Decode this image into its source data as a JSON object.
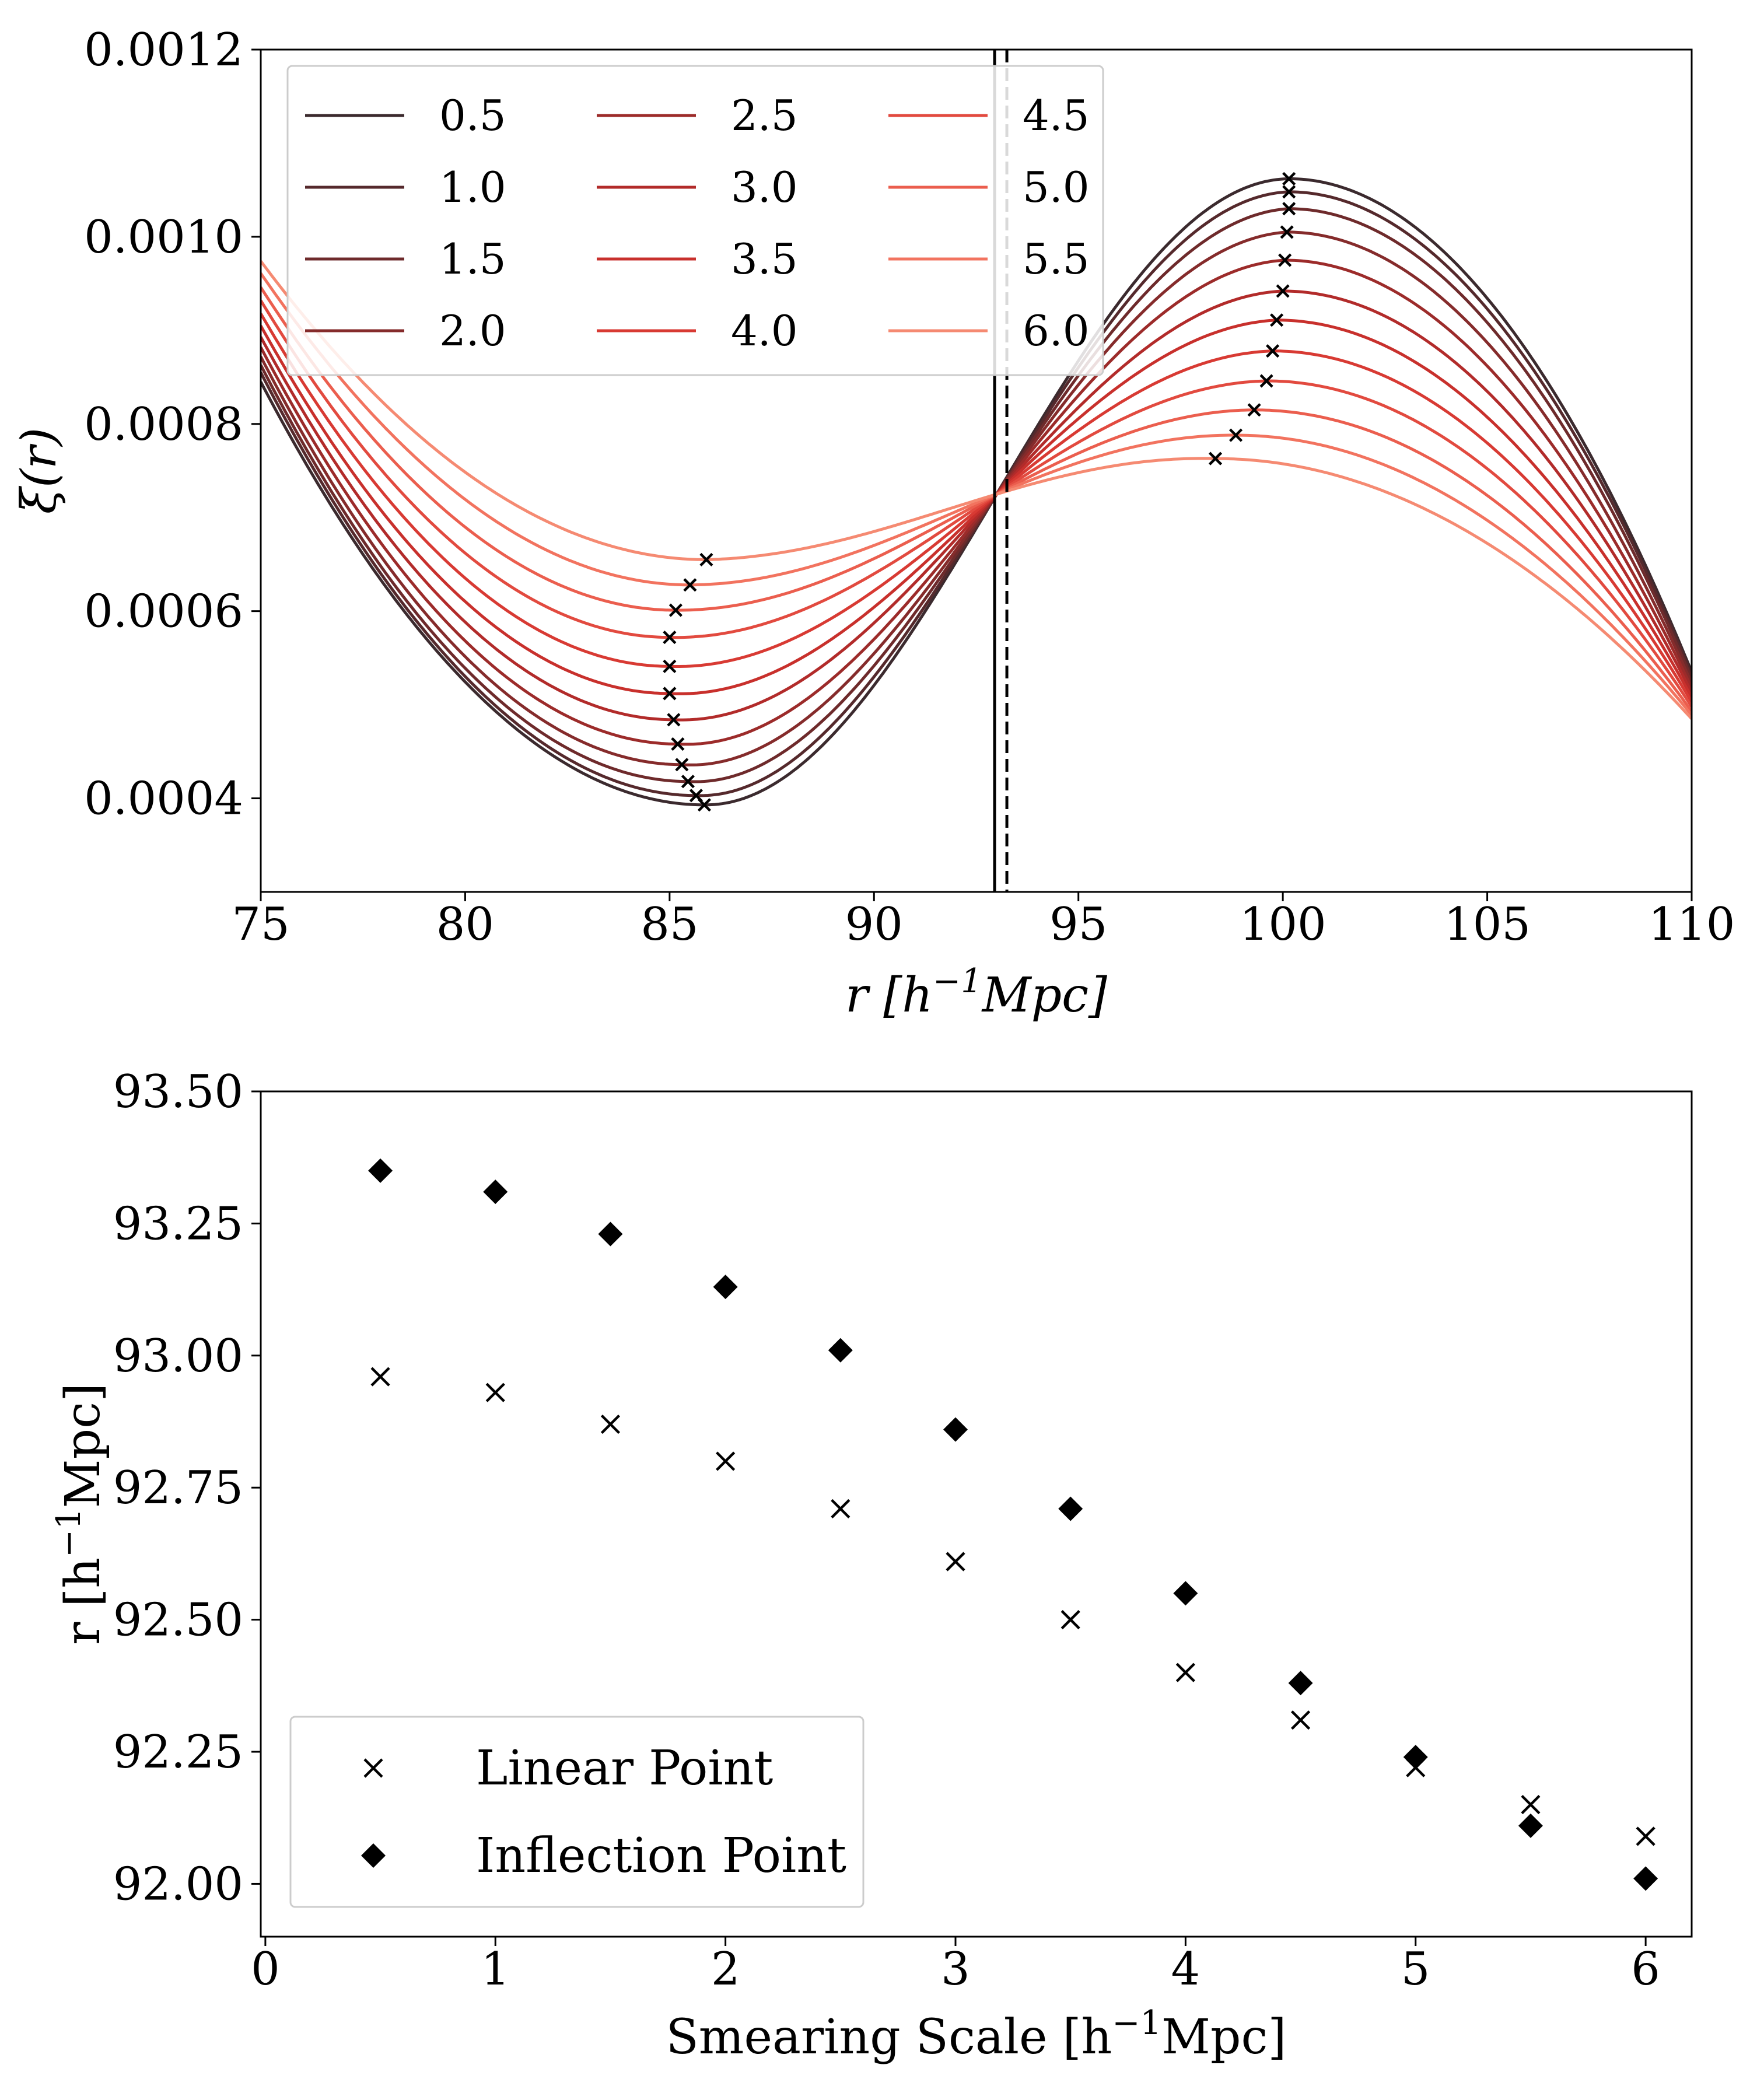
{
  "chart_data": [
    {
      "type": "line",
      "xlabel": "r [h⁻¹Mpc]",
      "ylabel": "ξ(r)",
      "xlim": [
        75,
        110
      ],
      "ylim": [
        0.0003,
        0.0012
      ],
      "xticks": [
        75,
        80,
        85,
        90,
        95,
        100,
        105,
        110
      ],
      "xtick_labels": [
        "75",
        "80",
        "85",
        "90",
        "95",
        "100",
        "105",
        "110"
      ],
      "yticks": [
        0.0004,
        0.0006,
        0.0008,
        0.001,
        0.0012
      ],
      "ytick_labels": [
        "0.0004",
        "0.0006",
        "0.0008",
        "0.0010",
        "0.0012"
      ],
      "legend": {
        "location": "upper-left",
        "columns": 3
      },
      "vlines": [
        {
          "x": 92.95,
          "style": "solid"
        },
        {
          "x": 93.25,
          "style": "dashed"
        }
      ],
      "crossing": {
        "x": 93.0,
        "y": 0.000725
      },
      "series": [
        {
          "name": "0.5",
          "color": "#3b2a2e",
          "left_edge": 0.000845,
          "min": {
            "x": 85.85,
            "y": 0.000393
          },
          "max": {
            "x": 100.15,
            "y": 0.001062
          },
          "right_edge": 0.000535
        },
        {
          "name": "1.0",
          "color": "#55292c",
          "left_edge": 0.000855,
          "min": {
            "x": 85.65,
            "y": 0.000403
          },
          "max": {
            "x": 100.15,
            "y": 0.001048
          },
          "right_edge": 0.000532
        },
        {
          "name": "1.5",
          "color": "#6e2a2b",
          "left_edge": 0.000863,
          "min": {
            "x": 85.45,
            "y": 0.000418
          },
          "max": {
            "x": 100.15,
            "y": 0.00103
          },
          "right_edge": 0.000528
        },
        {
          "name": "2.0",
          "color": "#852b2b",
          "left_edge": 0.000872,
          "min": {
            "x": 85.3,
            "y": 0.000436
          },
          "max": {
            "x": 100.1,
            "y": 0.001005
          },
          "right_edge": 0.000523
        },
        {
          "name": "2.5",
          "color": "#9c2b2a",
          "left_edge": 0.000882,
          "min": {
            "x": 85.2,
            "y": 0.000458
          },
          "max": {
            "x": 100.05,
            "y": 0.000975
          },
          "right_edge": 0.000518
        },
        {
          "name": "3.0",
          "color": "#b22b2a",
          "left_edge": 0.000893,
          "min": {
            "x": 85.1,
            "y": 0.000484
          },
          "max": {
            "x": 100.0,
            "y": 0.000942
          },
          "right_edge": 0.000513
        },
        {
          "name": "3.5",
          "color": "#c8302c",
          "left_edge": 0.000905,
          "min": {
            "x": 85.0,
            "y": 0.000512
          },
          "max": {
            "x": 99.85,
            "y": 0.000911
          },
          "right_edge": 0.000508
        },
        {
          "name": "4.0",
          "color": "#d83a33",
          "left_edge": 0.000918,
          "min": {
            "x": 85.0,
            "y": 0.000541
          },
          "max": {
            "x": 99.75,
            "y": 0.000878
          },
          "right_edge": 0.000503
        },
        {
          "name": "4.5",
          "color": "#e24a3f",
          "left_edge": 0.000932,
          "min": {
            "x": 85.0,
            "y": 0.000572
          },
          "max": {
            "x": 99.6,
            "y": 0.000846
          },
          "right_edge": 0.000498
        },
        {
          "name": "5.0",
          "color": "#eb5e4e",
          "left_edge": 0.000946,
          "min": {
            "x": 85.15,
            "y": 0.000601
          },
          "max": {
            "x": 99.3,
            "y": 0.000815
          },
          "right_edge": 0.000493
        },
        {
          "name": "5.5",
          "color": "#f2735f",
          "left_edge": 0.000961,
          "min": {
            "x": 85.5,
            "y": 0.000628
          },
          "max": {
            "x": 98.85,
            "y": 0.000788
          },
          "right_edge": 0.000489
        },
        {
          "name": "6.0",
          "color": "#f58a72",
          "left_edge": 0.000974,
          "min": {
            "x": 85.9,
            "y": 0.000655
          },
          "max": {
            "x": 98.35,
            "y": 0.000763
          },
          "right_edge": 0.000485
        }
      ]
    },
    {
      "type": "scatter",
      "xlabel": "Smearing Scale [h⁻¹Mpc]",
      "ylabel": "r [h⁻¹Mpc]",
      "xlim": [
        -0.02,
        6.2
      ],
      "ylim": [
        91.9,
        93.5
      ],
      "xticks": [
        0,
        1,
        2,
        3,
        4,
        5,
        6
      ],
      "xtick_labels": [
        "0",
        "1",
        "2",
        "3",
        "4",
        "5",
        "6"
      ],
      "yticks": [
        92.0,
        92.25,
        92.5,
        92.75,
        93.0,
        93.25,
        93.5
      ],
      "ytick_labels": [
        "92.00",
        "92.25",
        "92.50",
        "92.75",
        "93.00",
        "93.25",
        "93.50"
      ],
      "legend": {
        "location": "lower-left"
      },
      "x": [
        0.5,
        1.0,
        1.5,
        2.0,
        2.5,
        3.0,
        3.5,
        4.0,
        4.5,
        5.0,
        5.5,
        6.0
      ],
      "series": [
        {
          "name": "Linear Point",
          "marker": "x",
          "values": [
            92.96,
            92.93,
            92.87,
            92.8,
            92.71,
            92.61,
            92.5,
            92.4,
            92.31,
            92.22,
            92.15,
            92.09
          ]
        },
        {
          "name": "Inflection Point",
          "marker": "diamond",
          "values": [
            93.35,
            93.31,
            93.23,
            93.13,
            93.01,
            92.86,
            92.71,
            92.55,
            92.38,
            92.24,
            92.11,
            92.01
          ]
        }
      ]
    }
  ]
}
